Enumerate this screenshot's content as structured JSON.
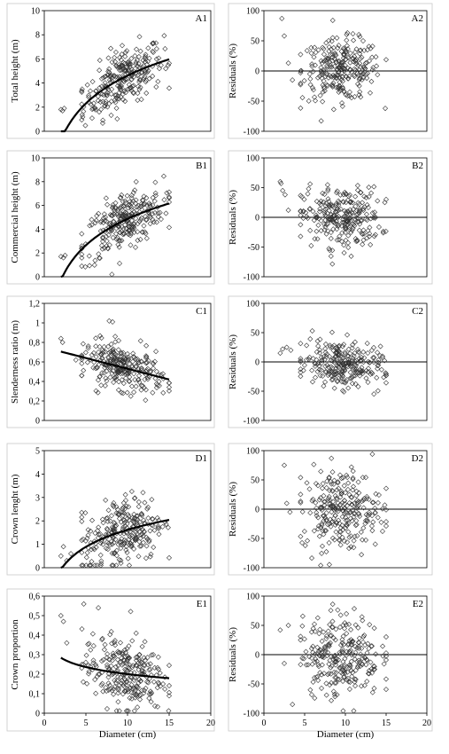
{
  "chart_data": [
    {
      "panel": "A1",
      "type": "scatter",
      "label": "A1",
      "xlabel": "",
      "ylabel": "Total height (m)",
      "xlim": [
        0,
        20
      ],
      "ylim": [
        0,
        10
      ],
      "yticks": [
        0,
        2,
        4,
        6,
        8,
        10
      ],
      "xticks": [],
      "x_cluster": {
        "mean": 9.5,
        "sd": 2.4,
        "min": 2.0,
        "max": 15.0
      },
      "y_model": {
        "form": "a + b*ln(x)",
        "a": -3.05,
        "b": 3.33
      },
      "y_scatter_sd": 1.2,
      "curve": {
        "x_from": 2,
        "x_to": 15
      },
      "outliers": [
        [
          2.0,
          1.8
        ],
        [
          2.2,
          1.7
        ],
        [
          2.4,
          1.9
        ]
      ]
    },
    {
      "panel": "A2",
      "type": "scatter",
      "label": "A2",
      "xlabel": "",
      "ylabel": "Residuals (%)",
      "xlim": [
        0,
        20
      ],
      "ylim": [
        -100,
        100
      ],
      "yticks": [
        -100,
        -50,
        0,
        50,
        100
      ],
      "xticks": [],
      "x_cluster": {
        "mean": 9.5,
        "sd": 2.4,
        "min": 2.0,
        "max": 15.0
      },
      "y_model": {
        "form": "a + b*x",
        "a": 2,
        "b": 0
      },
      "y_scatter_sd": 25,
      "zero_line": true,
      "outliers": [
        [
          2.2,
          87
        ],
        [
          2.5,
          58
        ],
        [
          3.0,
          13
        ],
        [
          3.5,
          -15
        ]
      ]
    },
    {
      "panel": "B1",
      "type": "scatter",
      "label": "B1",
      "xlabel": "",
      "ylabel": "Commercial height (m)",
      "xlim": [
        0,
        20
      ],
      "ylim": [
        0,
        10
      ],
      "yticks": [
        0,
        2,
        4,
        6,
        8,
        10
      ],
      "xticks": [],
      "x_cluster": {
        "mean": 9.5,
        "sd": 2.4,
        "min": 2.0,
        "max": 15.0
      },
      "y_model": {
        "form": "a + b*ln(x)",
        "a": -2.5,
        "b": 3.2
      },
      "y_scatter_sd": 1.2,
      "curve": {
        "x_from": 2,
        "x_to": 15
      },
      "outliers": [
        [
          2.0,
          1.7
        ],
        [
          2.3,
          1.6
        ],
        [
          2.5,
          1.8
        ]
      ]
    },
    {
      "panel": "B2",
      "type": "scatter",
      "label": "B2",
      "xlabel": "",
      "ylabel": "Residuals (%)",
      "xlim": [
        0,
        20
      ],
      "ylim": [
        -100,
        100
      ],
      "yticks": [
        -100,
        -50,
        0,
        50,
        100
      ],
      "xticks": [],
      "x_cluster": {
        "mean": 9.5,
        "sd": 2.4,
        "min": 2.0,
        "max": 15.0
      },
      "y_model": {
        "form": "a + b*x",
        "a": 0,
        "b": 0
      },
      "y_scatter_sd": 25,
      "zero_line": true,
      "outliers": [
        [
          2.0,
          60
        ],
        [
          2.1,
          57
        ],
        [
          2.3,
          45
        ],
        [
          2.6,
          38
        ],
        [
          3.0,
          12
        ]
      ]
    },
    {
      "panel": "C1",
      "type": "scatter",
      "label": "C1",
      "xlabel": "",
      "ylabel": "Slenderness ratio (m)",
      "xlim": [
        0,
        20
      ],
      "ylim": [
        0,
        1.2
      ],
      "yticks": [
        0,
        0.2,
        0.4,
        0.6,
        0.8,
        1,
        1.2
      ],
      "ytick_labels": [
        "0",
        "0,2",
        "0,4",
        "0,6",
        "0,8",
        "1",
        "1,2"
      ],
      "xticks": [],
      "x_cluster": {
        "mean": 9.5,
        "sd": 2.4,
        "min": 2.0,
        "max": 15.0
      },
      "y_model": {
        "form": "a + b*x",
        "a": 0.75,
        "b": -0.022
      },
      "y_scatter_sd": 0.11,
      "curve": {
        "x_from": 2,
        "x_to": 15
      },
      "outliers": [
        [
          2.0,
          0.84
        ],
        [
          2.2,
          0.8
        ],
        [
          7.8,
          1.02
        ],
        [
          8.2,
          1.01
        ],
        [
          3.8,
          0.62
        ]
      ]
    },
    {
      "panel": "C2",
      "type": "scatter",
      "label": "C2",
      "xlabel": "",
      "ylabel": "Residuals (%)",
      "xlim": [
        0,
        20
      ],
      "ylim": [
        -100,
        100
      ],
      "yticks": [
        -100,
        -50,
        0,
        50,
        100
      ],
      "xticks": [],
      "x_cluster": {
        "mean": 9.5,
        "sd": 2.4,
        "min": 2.0,
        "max": 15.0
      },
      "y_model": {
        "form": "a + b*x",
        "a": 15,
        "b": -2
      },
      "y_scatter_sd": 20,
      "zero_line": true,
      "outliers": [
        [
          2.0,
          15
        ],
        [
          2.3,
          22
        ],
        [
          2.8,
          25
        ],
        [
          3.3,
          20
        ]
      ]
    },
    {
      "panel": "D1",
      "type": "scatter",
      "label": "D1",
      "xlabel": "",
      "ylabel": "Crown lenght (m)",
      "xlim": [
        0,
        20
      ],
      "ylim": [
        0,
        5
      ],
      "yticks": [
        0,
        1,
        2,
        3,
        4,
        5
      ],
      "xticks": [],
      "x_cluster": {
        "mean": 9.5,
        "sd": 2.4,
        "min": 2.0,
        "max": 15.0
      },
      "y_model": {
        "form": "a + b*ln(x)",
        "a": -0.8,
        "b": 1.05
      },
      "y_scatter_sd": 0.75,
      "curve": {
        "x_from": 2,
        "x_to": 15
      },
      "outliers": [
        [
          2.0,
          0.5
        ],
        [
          2.3,
          0.9
        ],
        [
          2.7,
          0.3
        ],
        [
          3.2,
          0.6
        ]
      ]
    },
    {
      "panel": "D2",
      "type": "scatter",
      "label": "D2",
      "xlabel": "",
      "ylabel": "Residuals (%)",
      "xlim": [
        0,
        20
      ],
      "ylim": [
        -100,
        100
      ],
      "yticks": [
        -100,
        -50,
        0,
        50,
        100
      ],
      "xticks": [],
      "x_cluster": {
        "mean": 9.5,
        "sd": 2.4,
        "min": 2.0,
        "max": 15.0
      },
      "y_model": {
        "form": "a + b*x",
        "a": 0,
        "b": 0
      },
      "y_scatter_sd": 35,
      "zero_line": true,
      "outliers": [
        [
          2.5,
          75
        ],
        [
          2.8,
          10
        ],
        [
          3.2,
          -5
        ]
      ]
    },
    {
      "panel": "E1",
      "type": "scatter",
      "label": "E1",
      "xlabel": "Diameter (cm)",
      "ylabel": "Crown proportion",
      "xlim": [
        0,
        20
      ],
      "ylim": [
        0,
        0.6
      ],
      "yticks": [
        0,
        0.1,
        0.2,
        0.3,
        0.4,
        0.5,
        0.6
      ],
      "ytick_labels": [
        "0",
        "0,1",
        "0,2",
        "0,3",
        "0,4",
        "0,5",
        "0,6"
      ],
      "xticks": [
        0,
        5,
        10,
        15,
        20
      ],
      "x_cluster": {
        "mean": 9.5,
        "sd": 2.4,
        "min": 2.0,
        "max": 15.0
      },
      "y_model": {
        "form": "a + b*ln(x)",
        "a": 0.32,
        "b": -0.052
      },
      "y_scatter_sd": 0.09,
      "curve": {
        "x_from": 2,
        "x_to": 15
      },
      "outliers": [
        [
          2.0,
          0.5
        ],
        [
          2.3,
          0.47
        ],
        [
          2.7,
          0.36
        ],
        [
          6.5,
          0.54
        ]
      ]
    },
    {
      "panel": "E2",
      "type": "scatter",
      "label": "E2",
      "xlabel": "Diameter (cm)",
      "ylabel": "Residuals (%)",
      "xlim": [
        0,
        20
      ],
      "ylim": [
        -100,
        100
      ],
      "yticks": [
        -100,
        -50,
        0,
        50,
        100
      ],
      "xticks": [
        0,
        5,
        10,
        15,
        20
      ],
      "x_cluster": {
        "mean": 9.5,
        "sd": 2.4,
        "min": 2.0,
        "max": 15.0
      },
      "y_model": {
        "form": "a + b*x",
        "a": 0,
        "b": 0
      },
      "y_scatter_sd": 35,
      "zero_line": true,
      "outliers": [
        [
          2.0,
          42
        ],
        [
          2.5,
          -15
        ],
        [
          3.5,
          -85
        ],
        [
          3.0,
          50
        ]
      ]
    }
  ]
}
